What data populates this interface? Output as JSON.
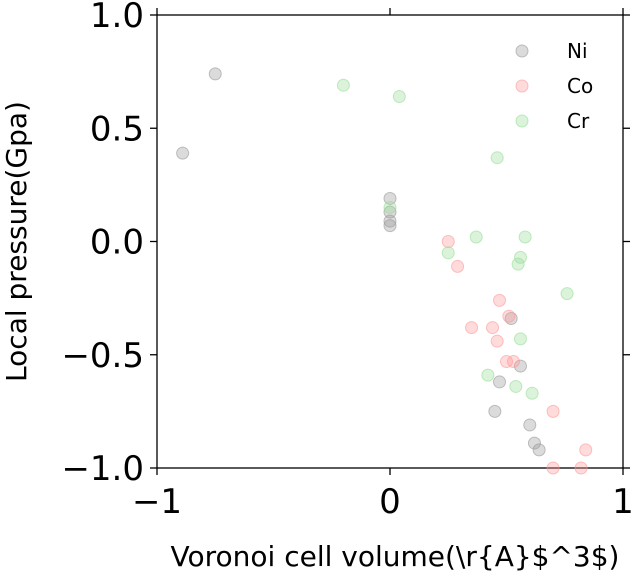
{
  "chart_data": {
    "type": "scatter",
    "title": "",
    "xlabel": "Voronoi cell volume(\\r{A}$^3$)",
    "ylabel": "Local pressure(Gpa)",
    "xlim": [
      -1,
      1
    ],
    "ylim": [
      -1,
      1
    ],
    "x_ticks": [
      -1,
      0,
      1
    ],
    "y_ticks": [
      -1.0,
      -0.5,
      0.0,
      0.5,
      1.0
    ],
    "x_tick_labels": [
      "−1",
      "0",
      "1"
    ],
    "y_tick_labels": [
      "−1.0",
      "−0.5",
      "0.0",
      "0.5",
      "1.0"
    ],
    "grid": false,
    "legend_position": "top-right",
    "series": [
      {
        "name": "Ni",
        "color": "#999999",
        "points": [
          [
            -0.89,
            0.39
          ],
          [
            -0.75,
            0.74
          ],
          [
            0.0,
            0.19
          ],
          [
            0.0,
            0.13
          ],
          [
            0.0,
            0.09
          ],
          [
            0.0,
            0.07
          ],
          [
            0.52,
            -0.34
          ],
          [
            0.56,
            -0.55
          ],
          [
            0.47,
            -0.62
          ],
          [
            0.45,
            -0.75
          ],
          [
            0.6,
            -0.81
          ],
          [
            0.62,
            -0.89
          ],
          [
            0.64,
            -0.92
          ]
        ]
      },
      {
        "name": "Co",
        "color": "#ff9999",
        "points": [
          [
            0.25,
            0.0
          ],
          [
            0.29,
            -0.11
          ],
          [
            0.47,
            -0.26
          ],
          [
            0.51,
            -0.33
          ],
          [
            0.35,
            -0.38
          ],
          [
            0.44,
            -0.38
          ],
          [
            0.46,
            -0.44
          ],
          [
            0.5,
            -0.53
          ],
          [
            0.53,
            -0.53
          ],
          [
            0.7,
            -0.75
          ],
          [
            0.84,
            -0.92
          ],
          [
            0.7,
            -1.0
          ],
          [
            0.82,
            -1.0
          ]
        ]
      },
      {
        "name": "Cr",
        "color": "#99dd99",
        "points": [
          [
            -0.2,
            0.69
          ],
          [
            0.04,
            0.64
          ],
          [
            0.46,
            0.37
          ],
          [
            0.0,
            0.15
          ],
          [
            0.37,
            0.02
          ],
          [
            0.58,
            0.02
          ],
          [
            0.25,
            -0.05
          ],
          [
            0.56,
            -0.07
          ],
          [
            0.55,
            -0.1
          ],
          [
            0.76,
            -0.23
          ],
          [
            0.56,
            -0.43
          ],
          [
            0.42,
            -0.59
          ],
          [
            0.54,
            -0.64
          ],
          [
            0.61,
            -0.67
          ]
        ]
      }
    ]
  }
}
